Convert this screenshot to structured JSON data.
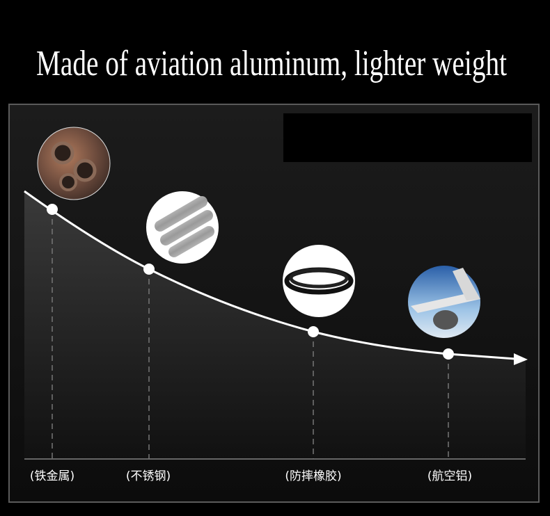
{
  "header": {
    "title": "Made of aviation aluminum, lighter weight"
  },
  "items": [
    {
      "label": "(铁金属)"
    },
    {
      "label": "(不锈钢)"
    },
    {
      "label": "(防摔橡胶)"
    },
    {
      "label": "(航空铝)"
    }
  ]
}
